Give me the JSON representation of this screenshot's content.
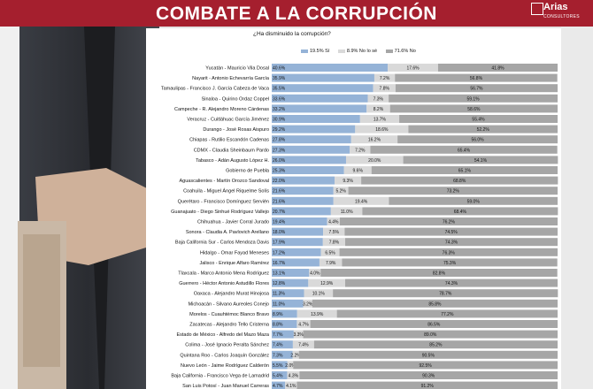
{
  "header": {
    "title": "COMBATE A LA CORRUPCIÓN",
    "logo_name": "Arias",
    "logo_sub": "CONSULTORES"
  },
  "colors": {
    "header": "#a51f2e",
    "si": "#95b3d7",
    "nolose": "#d9d9d9",
    "no": "#a6a6a6"
  },
  "chart_data": {
    "type": "bar",
    "stacked": true,
    "orientation": "horizontal",
    "title": "¿Ha disminuido la corrupción?",
    "legend_position": "top",
    "xlim": [
      0,
      100
    ],
    "legend": [
      "19.5% Sí",
      "8.9% No lo sé",
      "71.6% No"
    ],
    "categories": [
      "Yucatán - Mauricio Vila Dosal",
      "Nayarit - Antonio Echevarría García",
      "Tamaulipas - Francisco J. García Cabeza de Vaca",
      "Sinaloa - Quirino Ordaz Coppel",
      "Campeche - R. Alejandro Moreno Cárdenas",
      "Veracruz - Cuitláhuac García Jiménez",
      "Durango - José Rosas Aispuro",
      "Chiapas - Rutilio Escandón Cadenas",
      "CDMX - Claudia Sheinbaum Pardo",
      "Tabasco - Adán Augusto López H.",
      "Gobierno de Puebla",
      "Aguascalientes - Martín Orozco Sandoval",
      "Coahuila - Miguel Ángel Riquelme Solís",
      "Querétaro - Francisco Domínguez Servién",
      "Guanajuato - Diego Sinhué Rodríguez Vallejo",
      "Chihuahua - Javier Corral Jurado",
      "Sonora - Claudia A. Pavlovich Arellano",
      "Baja California Sur - Carlos Mendoza Davis",
      "Hidalgo - Omar Fayad Meneses",
      "Jalisco - Enrique Alfaro Ramírez",
      "Tlaxcala - Marco Antonio Mena Rodríguez",
      "Guerrero - Héctor Antonio Astudillo Flores",
      "Oaxaca - Alejandro Murat Hinojosa",
      "Michoacán - Silvano Aureoles Conejo",
      "Morelos - Cuauhtémoc Blanco Bravo",
      "Zacatecas - Alejandro Tello Cristerna",
      "Estado de México - Alfredo del Mazo Maza",
      "Colima - José Ignacio Peralta Sánchez",
      "Quintana Roo - Carlos Joaquín González",
      "Nuevo León - Jaime Rodríguez Calderón",
      "Baja California - Francisco Vega de Lamadrid",
      "San Luis Potosí - Juan Manuel Carreras"
    ],
    "series": [
      {
        "name": "Sí",
        "color": "#95b3d7",
        "values": [
          40.6,
          35.9,
          35.5,
          33.6,
          33.2,
          30.9,
          29.2,
          27.8,
          27.3,
          26.0,
          25.3,
          22.0,
          21.6,
          21.6,
          20.7,
          19.4,
          18.0,
          17.9,
          17.2,
          16.7,
          13.1,
          12.8,
          11.3,
          11.0,
          8.9,
          8.8,
          7.7,
          7.4,
          7.3,
          5.5,
          5.4,
          4.7
        ],
        "labels": [
          "40.6%",
          "35.9%",
          "35.5%",
          "33.6%",
          "33.2%",
          "30.9%",
          "29.2%",
          "27.8%",
          "27.3%",
          "26.0%",
          "25.3%",
          "22.0%",
          "21.6%",
          "21.6%",
          "20.7%",
          "19.4%",
          "18.0%",
          "17.9%",
          "17.2%",
          "16.7%",
          "13.1%",
          "12.8%",
          "11.3%",
          "11.0%",
          "8.9%",
          "8.8%",
          "7.7%",
          "7.4%",
          "7.3%",
          "5.5%",
          "5.4%",
          "4.7%"
        ]
      },
      {
        "name": "No lo sé",
        "color": "#d9d9d9",
        "values": [
          17.6,
          7.2,
          7.8,
          7.3,
          8.2,
          13.7,
          18.6,
          16.2,
          7.2,
          20.0,
          9.6,
          9.3,
          5.2,
          19.4,
          11.0,
          4.4,
          7.5,
          7.8,
          6.5,
          7.9,
          4.0,
          12.9,
          10.1,
          3.2,
          13.9,
          4.7,
          3.3,
          7.4,
          2.2,
          2.0,
          4.3,
          4.1
        ],
        "labels": [
          "17.6%",
          "7.2%",
          "7.8%",
          "7.3%",
          "8.2%",
          "13.7%",
          "18.6%",
          "16.2%",
          "7.2%",
          "20.0%",
          "9.6%",
          "9.3%",
          "5.2%",
          "19.4%",
          "11.0%",
          "4.4%",
          "7.5%",
          "7.8%",
          "6.5%",
          "7.9%",
          "4.0%",
          "12.9%",
          "10.1%",
          "3.2%",
          "13.9%",
          "4.7%",
          "3.3%",
          "7.4%",
          "2.2%",
          "2.0%",
          "4.3%",
          "4.1%"
        ]
      },
      {
        "name": "No",
        "color": "#a6a6a6",
        "values": [
          41.8,
          56.8,
          56.7,
          59.1,
          58.6,
          55.4,
          52.2,
          56.0,
          65.4,
          54.1,
          65.1,
          68.8,
          73.2,
          59.0,
          68.4,
          76.2,
          74.5,
          74.3,
          76.3,
          75.3,
          82.8,
          74.3,
          78.7,
          85.8,
          77.2,
          86.5,
          89.0,
          85.2,
          90.5,
          92.5,
          90.3,
          91.2
        ],
        "labels": [
          "41.8%",
          "56.8%",
          "56.7%",
          "59.1%",
          "58.6%",
          "55.4%",
          "52.2%",
          "56.0%",
          "65.4%",
          "54.1%",
          "65.1%",
          "68.8%",
          "73.2%",
          "59.0%",
          "68.4%",
          "76.2%",
          "74.5%",
          "74.3%",
          "76.3%",
          "75.3%",
          "82.8%",
          "74.3%",
          "78.7%",
          "85.8%",
          "77.2%",
          "86.5%",
          "89.0%",
          "85.2%",
          "90.5%",
          "92.5%",
          "90.3%",
          "91.2%"
        ]
      }
    ]
  }
}
